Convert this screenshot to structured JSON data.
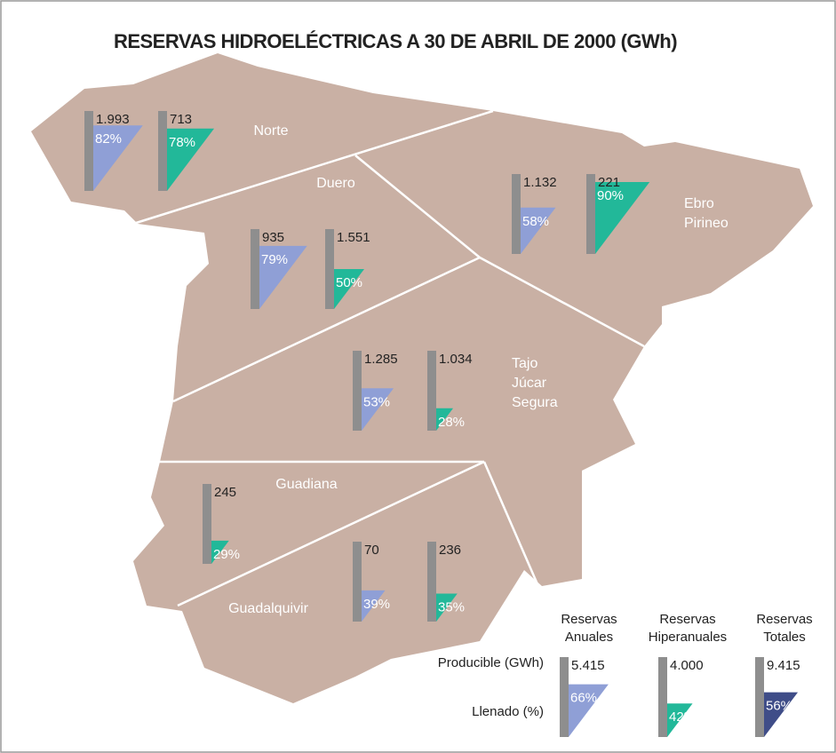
{
  "title": "RESERVAS HIDROELÉCTRICAS A 30 DE ABRIL DE 2000 (GWh)",
  "regions": [
    {
      "name": [
        "Norte"
      ],
      "gauges": [
        {
          "capacity": "1.993",
          "fill": {
            "value": 82,
            "label": "82%"
          },
          "color": "#8f9fd6"
        },
        {
          "capacity": "713",
          "fill": {
            "value": 78,
            "label": "78%"
          },
          "color": "#22b899"
        }
      ]
    },
    {
      "name": [
        "Duero"
      ],
      "gauges": [
        {
          "capacity": "935",
          "fill": {
            "value": 79,
            "label": "79%"
          },
          "color": "#8f9fd6"
        },
        {
          "capacity": "1.551",
          "fill": {
            "value": 50,
            "label": "50%"
          },
          "color": "#22b899"
        }
      ]
    },
    {
      "name": [
        "Ebro",
        "Pirineo"
      ],
      "gauges": [
        {
          "capacity": "1.132",
          "fill": {
            "value": 58,
            "label": "58%"
          },
          "color": "#8f9fd6"
        },
        {
          "capacity": "221",
          "fill": {
            "value": 90,
            "label": "90%"
          },
          "color": "#22b899"
        }
      ]
    },
    {
      "name": [
        "Tajo",
        "Júcar",
        "Segura"
      ],
      "gauges": [
        {
          "capacity": "1.285",
          "fill": {
            "value": 53,
            "label": "53%"
          },
          "color": "#8f9fd6"
        },
        {
          "capacity": "1.034",
          "fill": {
            "value": 28,
            "label": "28%"
          },
          "color": "#22b899"
        }
      ]
    },
    {
      "name": [
        "Guadiana"
      ],
      "gauges": [
        {
          "capacity": "245",
          "fill": {
            "value": 29,
            "label": "29%"
          },
          "color": "#22b899"
        }
      ]
    },
    {
      "name": [
        "Guadalquivir"
      ],
      "gauges": [
        {
          "capacity": "70",
          "fill": {
            "value": 39,
            "label": "39%"
          },
          "color": "#8f9fd6"
        },
        {
          "capacity": "236",
          "fill": {
            "value": 35,
            "label": "35%"
          },
          "color": "#22b899"
        }
      ]
    }
  ],
  "legend": {
    "row_labels": [
      "Producible (GWh)",
      "Llenado (%)"
    ],
    "columns": [
      {
        "header": [
          "Reservas",
          "Anuales"
        ],
        "capacity": "5.415",
        "fill": {
          "value": 66,
          "label": "66%"
        },
        "color": "#8f9fd6"
      },
      {
        "header": [
          "Reservas",
          "Hiperanuales"
        ],
        "capacity": "4.000",
        "fill": {
          "value": 42,
          "label": "42%"
        },
        "color": "#22b899"
      },
      {
        "header": [
          "Reservas",
          "Totales"
        ],
        "capacity": "9.415",
        "fill": {
          "value": 56,
          "label": "56%"
        },
        "color": "#3f4d88"
      }
    ]
  }
}
